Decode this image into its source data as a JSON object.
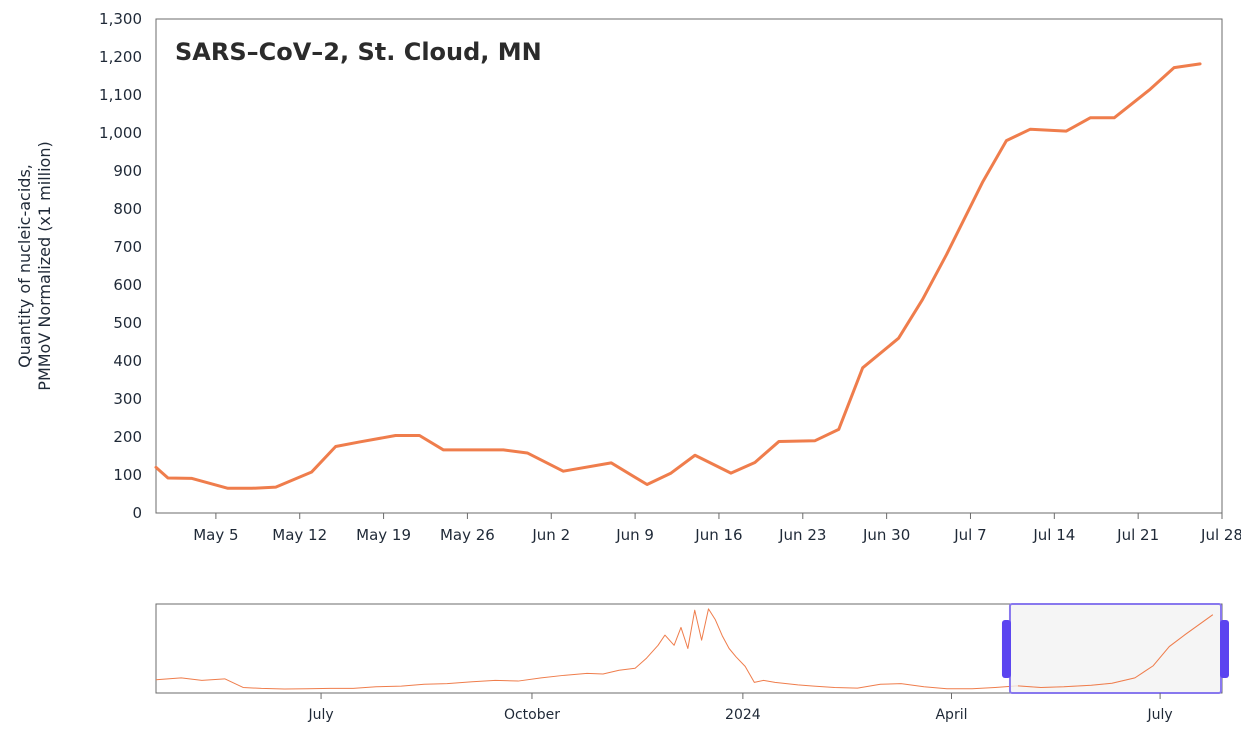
{
  "colors": {
    "series": "#ef7d4c",
    "frame": "#6b6b6b",
    "navigator_fill": "#f3f3f3",
    "navigator_handle": "#5b44f0",
    "navigator_border": "#8878ee"
  },
  "chart_data": {
    "type": "line",
    "title": "SARS–CoV–2, St. Cloud, MN",
    "ylabel_line1": "Quantity of nucleic-acids,",
    "ylabel_line2": "PMMoV Normalized (x1 million)",
    "ylim": [
      0,
      1300
    ],
    "yticks": [
      0,
      100,
      200,
      300,
      400,
      500,
      600,
      700,
      800,
      900,
      1000,
      1100,
      1200,
      1300
    ],
    "ytick_labels": [
      "0",
      "100",
      "200",
      "300",
      "400",
      "500",
      "600",
      "700",
      "800",
      "900",
      "1,000",
      "1,100",
      "1,200",
      "1,300"
    ],
    "xlim": [
      "2024-04-30",
      "2024-07-28"
    ],
    "xticks": [
      "2024-05-05",
      "2024-05-12",
      "2024-05-19",
      "2024-05-26",
      "2024-06-02",
      "2024-06-09",
      "2024-06-16",
      "2024-06-23",
      "2024-06-30",
      "2024-07-07",
      "2024-07-14",
      "2024-07-21",
      "2024-07-28"
    ],
    "xtick_labels": [
      "May 5",
      "May 12",
      "May 19",
      "May 26",
      "Jun 2",
      "Jun 9",
      "Jun 16",
      "Jun 23",
      "Jun 30",
      "Jul 7",
      "Jul 14",
      "Jul 21",
      "Jul 28"
    ],
    "grid": false,
    "series": [
      {
        "x": [
          "2024-04-30",
          "2024-05-01",
          "2024-05-03",
          "2024-05-06",
          "2024-05-08",
          "2024-05-10",
          "2024-05-13",
          "2024-05-15",
          "2024-05-17",
          "2024-05-20",
          "2024-05-22",
          "2024-05-24",
          "2024-05-27",
          "2024-05-29",
          "2024-05-31",
          "2024-06-03",
          "2024-06-07",
          "2024-06-10",
          "2024-06-12",
          "2024-06-14",
          "2024-06-17",
          "2024-06-19",
          "2024-06-21",
          "2024-06-24",
          "2024-06-26",
          "2024-06-28",
          "2024-07-01",
          "2024-07-03",
          "2024-07-05",
          "2024-07-08",
          "2024-07-10",
          "2024-07-12",
          "2024-07-15",
          "2024-07-17",
          "2024-07-19",
          "2024-07-22",
          "2024-07-24"
        ],
        "y": [
          120,
          92,
          91,
          65,
          65,
          68,
          108,
          175,
          187,
          204,
          204,
          166,
          166,
          166,
          158,
          110,
          132,
          75,
          105,
          152,
          105,
          133,
          188,
          190,
          220,
          382,
          460,
          562,
          680,
          870,
          980,
          1010,
          1005,
          1040,
          1040,
          1115,
          1172
        ]
      }
    ],
    "series_end_y": 1182,
    "navigator": {
      "xticks": [
        "2023-07-01",
        "2023-10-01",
        "2024-01-01",
        "2024-04-01",
        "2024-07-01"
      ],
      "xtick_labels": [
        "July",
        "October",
        "2024",
        "April",
        "July"
      ],
      "xlim": [
        "2023-04-20",
        "2024-07-28"
      ],
      "selection": [
        "2024-04-30",
        "2024-07-28"
      ],
      "series": {
        "x": [
          "2023-04-20",
          "2023-05-01",
          "2023-05-10",
          "2023-05-20",
          "2023-05-28",
          "2023-06-05",
          "2023-06-15",
          "2023-06-25",
          "2023-07-05",
          "2023-07-15",
          "2023-07-25",
          "2023-08-05",
          "2023-08-15",
          "2023-08-25",
          "2023-09-05",
          "2023-09-15",
          "2023-09-25",
          "2023-10-05",
          "2023-10-15",
          "2023-10-25",
          "2023-11-01",
          "2023-11-08",
          "2023-11-15",
          "2023-11-20",
          "2023-11-25",
          "2023-11-28",
          "2023-12-02",
          "2023-12-05",
          "2023-12-08",
          "2023-12-11",
          "2023-12-14",
          "2023-12-17",
          "2023-12-20",
          "2023-12-23",
          "2023-12-26",
          "2023-12-29",
          "2024-01-02",
          "2024-01-06",
          "2024-01-10",
          "2024-01-15",
          "2024-01-20",
          "2024-01-25",
          "2024-02-01",
          "2024-02-10",
          "2024-02-20",
          "2024-03-01",
          "2024-03-10",
          "2024-03-20",
          "2024-03-30",
          "2024-04-10",
          "2024-04-20",
          "2024-04-30",
          "2024-05-10",
          "2024-05-20",
          "2024-06-01",
          "2024-06-10",
          "2024-06-20",
          "2024-06-28",
          "2024-07-05",
          "2024-07-12",
          "2024-07-24"
        ],
        "y": [
          160,
          190,
          150,
          175,
          40,
          25,
          15,
          20,
          25,
          25,
          50,
          60,
          90,
          100,
          130,
          150,
          140,
          190,
          230,
          260,
          250,
          310,
          340,
          500,
          700,
          860,
          700,
          980,
          650,
          1250,
          780,
          1270,
          1100,
          850,
          650,
          520,
          370,
          120,
          150,
          120,
          100,
          80,
          60,
          40,
          30,
          90,
          100,
          50,
          20,
          20,
          40,
          65,
          40,
          50,
          75,
          105,
          190,
          380,
          680,
          870,
          1180
        ]
      }
    }
  }
}
